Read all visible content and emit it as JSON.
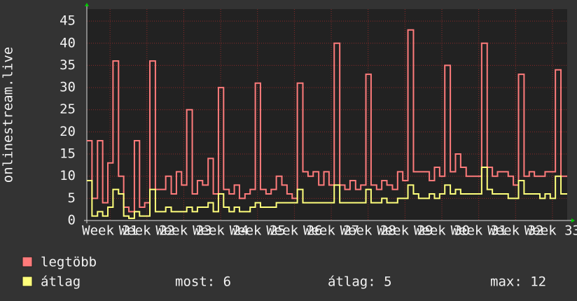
{
  "chart_data": {
    "type": "line",
    "step": true,
    "y_label": "onlinestream.live",
    "xlim": [
      20.37,
      33.4
    ],
    "xticks": [
      {
        "value": 21,
        "label": "Week 21"
      },
      {
        "value": 22,
        "label": "Week 22"
      },
      {
        "value": 23,
        "label": "Week 23"
      },
      {
        "value": 24,
        "label": "Week 24"
      },
      {
        "value": 25,
        "label": "Week 25"
      },
      {
        "value": 26,
        "label": "Week 26"
      },
      {
        "value": 27,
        "label": "Week 27"
      },
      {
        "value": 28,
        "label": "Week 28"
      },
      {
        "value": 29,
        "label": "Week 29"
      },
      {
        "value": 30,
        "label": "Week 30"
      },
      {
        "value": 31,
        "label": "Week 31"
      },
      {
        "value": 32,
        "label": "Week 32"
      },
      {
        "value": 33,
        "label": "Week 33"
      }
    ],
    "ylim": [
      0,
      47.7
    ],
    "yticks": [
      0,
      5,
      10,
      15,
      20,
      25,
      30,
      35,
      40,
      45
    ],
    "grid": true,
    "x": [
      20.37,
      20.51,
      20.66,
      20.8,
      20.94,
      21.08,
      21.23,
      21.37,
      21.51,
      21.66,
      21.8,
      21.94,
      22.08,
      22.23,
      22.37,
      22.51,
      22.66,
      22.8,
      22.94,
      23.08,
      23.23,
      23.37,
      23.51,
      23.66,
      23.8,
      23.94,
      24.08,
      24.23,
      24.37,
      24.51,
      24.66,
      24.8,
      24.94,
      25.08,
      25.23,
      25.37,
      25.51,
      25.66,
      25.8,
      25.94,
      26.08,
      26.23,
      26.37,
      26.51,
      26.66,
      26.8,
      26.94,
      27.08,
      27.23,
      27.37,
      27.51,
      27.66,
      27.8,
      27.94,
      28.08,
      28.23,
      28.37,
      28.51,
      28.66,
      28.8,
      28.94,
      29.08,
      29.23,
      29.37,
      29.51,
      29.66,
      29.8,
      29.94,
      30.08,
      30.23,
      30.37,
      30.51,
      30.66,
      30.8,
      30.94,
      31.08,
      31.23,
      31.37,
      31.51,
      31.66,
      31.8,
      31.94,
      32.08,
      32.23,
      32.37,
      32.51,
      32.66,
      32.8,
      32.94,
      33.08,
      33.23
    ],
    "series": [
      {
        "name": "legtöbb",
        "color": "#ff7b7b",
        "values": [
          18,
          5,
          18,
          4,
          13,
          36,
          10,
          3,
          2,
          18,
          3,
          4,
          36,
          7,
          7,
          10,
          6,
          11,
          8,
          25,
          6,
          9,
          8,
          14,
          6,
          30,
          7,
          6,
          8,
          5,
          6,
          7,
          31,
          7,
          6,
          7,
          10,
          8,
          6,
          5,
          31,
          11,
          10,
          11,
          8,
          11,
          8,
          40,
          8,
          7,
          9,
          7,
          8,
          33,
          8,
          7,
          9,
          8,
          7,
          11,
          9,
          43,
          11,
          11,
          11,
          9,
          12,
          10,
          35,
          11,
          15,
          12,
          10,
          10,
          10,
          40,
          12,
          10,
          11,
          11,
          10,
          8,
          33,
          10,
          11,
          10,
          10,
          11,
          11,
          34,
          10
        ]
      },
      {
        "name": "átlag",
        "color": "#ffff7b",
        "values": [
          9,
          1,
          2,
          1,
          3,
          7,
          6,
          1,
          0.5,
          2,
          1,
          1,
          7,
          2,
          2,
          3,
          2,
          2,
          2,
          3,
          2,
          3,
          3,
          4,
          2,
          6,
          3,
          2,
          3,
          2,
          2,
          3,
          4,
          3,
          3,
          3,
          4,
          4,
          4,
          4,
          7,
          4,
          4,
          4,
          4,
          4,
          4,
          8,
          4,
          4,
          4,
          4,
          4,
          7,
          4,
          4,
          5,
          4,
          4,
          5,
          5,
          8,
          6,
          5,
          5,
          6,
          5,
          6,
          8,
          6,
          7,
          6,
          6,
          6,
          6,
          12,
          7,
          6,
          6,
          6,
          5,
          5,
          9,
          6,
          6,
          6,
          5,
          6,
          5,
          10,
          6
        ]
      }
    ],
    "stats": [
      "most: 6",
      "átlag: 5",
      "max: 12"
    ]
  }
}
